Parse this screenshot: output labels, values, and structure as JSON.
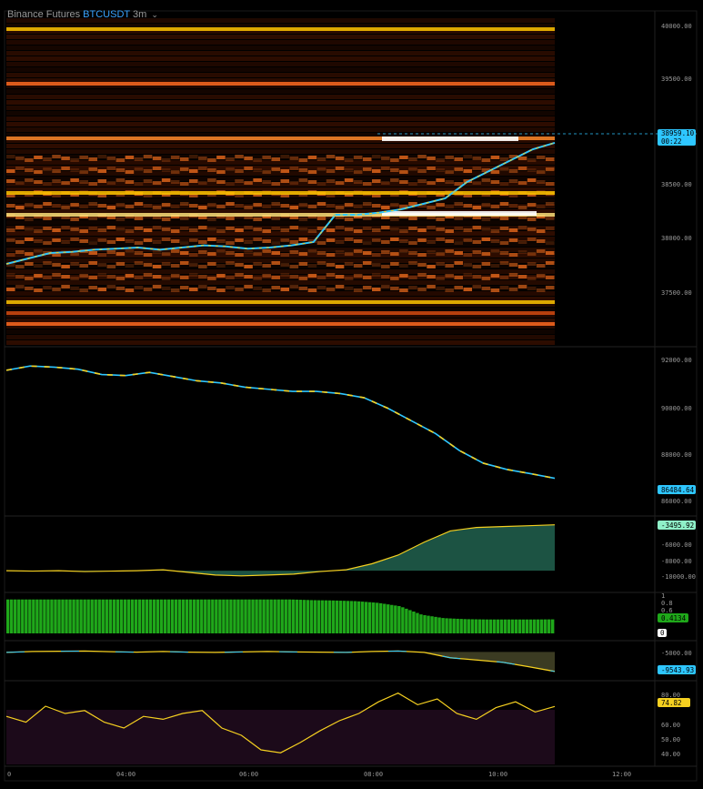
{
  "header": {
    "exchange": "Binance Futures",
    "symbol_base": "BTC",
    "symbol_quote": "USDT",
    "interval": "3m",
    "chevron_icon": "chevron-down-icon"
  },
  "colors": {
    "background": "#000000",
    "price_line_up": "#2ec6ff",
    "price_line_down": "#f5d020",
    "heatmap_low": "#3a0d00",
    "heatmap_mid": "#d24a10",
    "heatmap_high": "#ffc400",
    "heatmap_max": "#ffffff",
    "cvd_fill": "#1f5c4a",
    "ratio_bar": "#1fa81a",
    "rsi_band": "#1c0a1a"
  },
  "price_axis": {
    "ticks": [
      "40000.00",
      "39500.00",
      "38500.00",
      "38000.00",
      "37500.00"
    ],
    "current_price": "38959.10",
    "countdown": "00:22"
  },
  "panel2_axis": {
    "ticks": [
      "92000.00",
      "90000.00",
      "88000.00",
      "86000.00"
    ],
    "current_value": "86484.64"
  },
  "panel3_axis": {
    "ticks": [
      "-6000.00",
      "-8000.00",
      "-10000.00"
    ],
    "current_value": "-3495.92"
  },
  "panel4_axis": {
    "ticks": [
      "1",
      "0.8",
      "0.6"
    ],
    "current_value": "0.4134",
    "marker_label": "0"
  },
  "panel5_axis": {
    "ticks": [
      "-5000.00"
    ],
    "current_value": "-9543.93"
  },
  "panel6_axis": {
    "ticks": [
      "80.00",
      "60.00",
      "50.00",
      "40.00"
    ],
    "current_value": "74.82"
  },
  "time_axis": {
    "labels": [
      "04:00",
      "06:00",
      "08:00",
      "10:00",
      "12:00"
    ],
    "left_label": "0"
  },
  "chart_data": [
    {
      "type": "heatmap",
      "title": "Binance Futures BTCUSDT 3m",
      "ylim": [
        37100,
        40100
      ],
      "price_levels": [
        40000,
        39500,
        39000,
        38500,
        38300,
        37500,
        37400,
        37300
      ],
      "price_series": [
        37850,
        37900,
        37950,
        37960,
        37980,
        37990,
        38000,
        37980,
        38000,
        38020,
        38010,
        37990,
        38000,
        38020,
        38050,
        38300,
        38300,
        38320,
        38350,
        38400,
        38450,
        38600,
        38700,
        38800,
        38900,
        38959
      ]
    },
    {
      "type": "line",
      "ylim": [
        85000,
        92500
      ],
      "values": [
        91600,
        91800,
        91750,
        91650,
        91400,
        91350,
        91500,
        91300,
        91100,
        91000,
        90800,
        90700,
        90600,
        90600,
        90500,
        90300,
        89800,
        89200,
        88600,
        87800,
        87200,
        86900,
        86700,
        86484
      ]
    },
    {
      "type": "area",
      "ylim": [
        -11000,
        -3000
      ],
      "values": [
        -8800,
        -8850,
        -8800,
        -8900,
        -8850,
        -8800,
        -8700,
        -9000,
        -9300,
        -9400,
        -9300,
        -9200,
        -8900,
        -8700,
        -8000,
        -7000,
        -5500,
        -4200,
        -3800,
        -3700,
        -3600,
        -3496
      ]
    },
    {
      "type": "bar",
      "ylim": [
        0,
        1.1
      ],
      "values": [
        1,
        1,
        1,
        1,
        1,
        1,
        1,
        1,
        1,
        1,
        1,
        1,
        1,
        1,
        0.98,
        0.97,
        0.95,
        0.9,
        0.8,
        0.55,
        0.45,
        0.42,
        0.41,
        0.41,
        0.41,
        0.4134
      ]
    },
    {
      "type": "area",
      "ylim": [
        -11000,
        -3500
      ],
      "values": [
        -5300,
        -5100,
        -5050,
        -5000,
        -5150,
        -5250,
        -5100,
        -5250,
        -5300,
        -5200,
        -5100,
        -5200,
        -5250,
        -5300,
        -5100,
        -5000,
        -5300,
        -6500,
        -7000,
        -7500,
        -8500,
        -9543
      ]
    },
    {
      "type": "line",
      "ylim": [
        35,
        90
      ],
      "values": [
        68,
        64,
        75,
        70,
        72,
        64,
        60,
        68,
        66,
        70,
        72,
        60,
        55,
        45,
        43,
        50,
        58,
        65,
        70,
        78,
        84,
        76,
        80,
        70,
        66,
        74,
        78,
        71,
        74.82
      ]
    }
  ]
}
